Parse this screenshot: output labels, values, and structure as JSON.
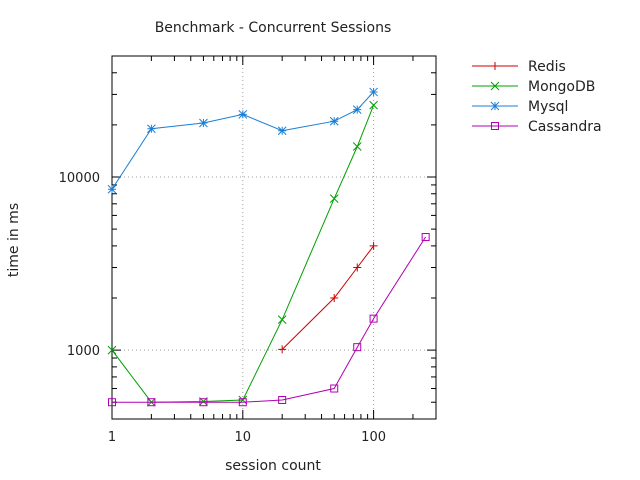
{
  "chart_data": {
    "type": "line",
    "title": "Benchmark - Concurrent Sessions",
    "xlabel": "session count",
    "ylabel": "time in ms",
    "x_scale": "log",
    "y_scale": "log",
    "xlim": [
      1,
      300
    ],
    "ylim": [
      400,
      50000
    ],
    "x_ticks": [
      {
        "value": 1,
        "label": "1"
      },
      {
        "value": 10,
        "label": "10"
      },
      {
        "value": 100,
        "label": "100"
      }
    ],
    "y_ticks": [
      {
        "value": 1000,
        "label": "1000"
      },
      {
        "value": 10000,
        "label": "10000"
      }
    ],
    "grid": true,
    "legend_position": "outside-top-right",
    "series": [
      {
        "name": "Redis",
        "color": "#cc0000",
        "marker": "plus",
        "x": [
          20,
          50,
          75,
          100
        ],
        "y": [
          1010,
          2000,
          3000,
          4000
        ]
      },
      {
        "name": "MongoDB",
        "color": "#00a000",
        "marker": "x",
        "x": [
          1,
          2,
          5,
          10,
          20,
          50,
          75,
          100
        ],
        "y": [
          1000,
          500,
          505,
          515,
          1500,
          7500,
          15000,
          26000
        ]
      },
      {
        "name": "Mysql",
        "color": "#1a7fd6",
        "marker": "star",
        "x": [
          1,
          2,
          5,
          10,
          20,
          50,
          75,
          100
        ],
        "y": [
          8500,
          19000,
          20500,
          23000,
          18500,
          21000,
          24500,
          31000
        ]
      },
      {
        "name": "Cassandra",
        "color": "#b000b0",
        "marker": "square",
        "x": [
          1,
          2,
          5,
          10,
          20,
          50,
          75,
          100,
          250
        ],
        "y": [
          500,
          500,
          500,
          500,
          515,
          600,
          1040,
          1520,
          4500
        ]
      }
    ]
  }
}
